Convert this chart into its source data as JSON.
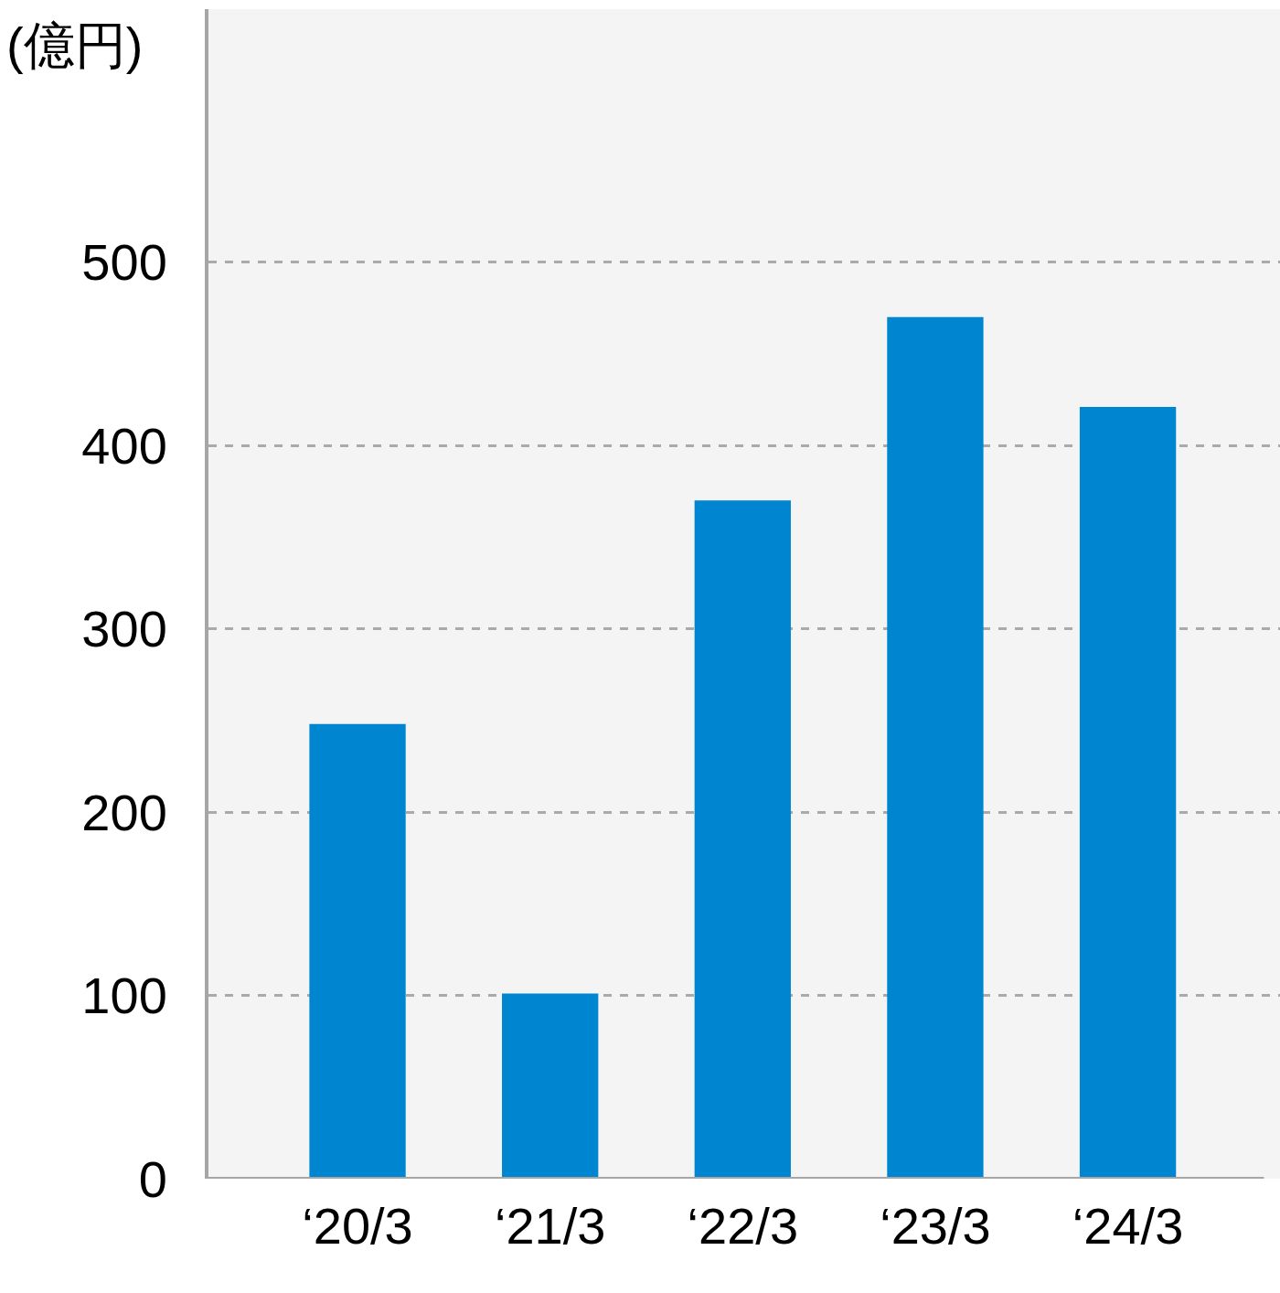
{
  "chart_data": {
    "type": "bar",
    "ylabel": "(億円)",
    "categories": [
      "‘20/3",
      "‘21/3",
      "‘22/3",
      "‘23/3",
      "‘24/3"
    ],
    "values": [
      248,
      101,
      370,
      470,
      421
    ],
    "color": "#0085d0",
    "ylim": [
      0,
      638
    ],
    "yticks": [
      0,
      100,
      200,
      300,
      400,
      500
    ],
    "grid": "y"
  }
}
